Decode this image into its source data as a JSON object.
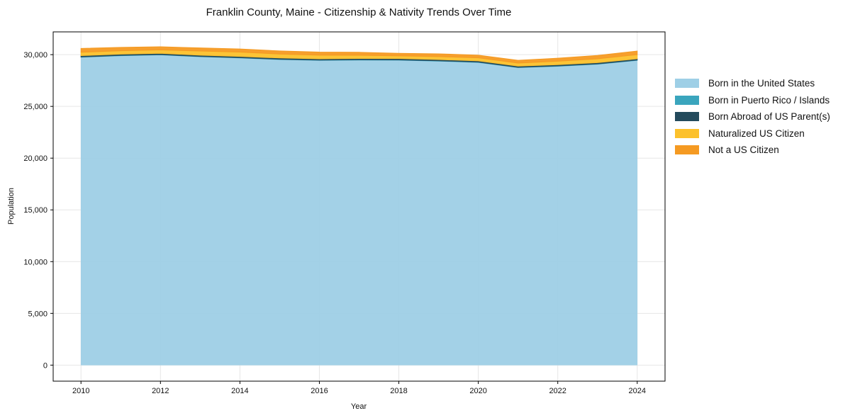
{
  "chart_data": {
    "type": "area",
    "stacked": true,
    "title": "Franklin County, Maine - Citizenship & Nativity Trends Over Time",
    "xlabel": "Year",
    "ylabel": "Population",
    "x": [
      2010,
      2011,
      2012,
      2013,
      2014,
      2015,
      2016,
      2017,
      2018,
      2019,
      2020,
      2021,
      2022,
      2023,
      2024
    ],
    "xticks": [
      2010,
      2012,
      2014,
      2016,
      2018,
      2020,
      2022,
      2024
    ],
    "yticks": [
      0,
      5000,
      10000,
      15000,
      20000,
      25000,
      30000
    ],
    "ytick_labels": [
      "0",
      "5,000",
      "10,000",
      "15,000",
      "20,000",
      "25,000",
      "30,000"
    ],
    "xlim": [
      2009.3,
      2024.7
    ],
    "ylim": [
      -1550,
      32200
    ],
    "grid": true,
    "legend_position": "right, outside plot",
    "series": [
      {
        "name": "Born in the United States",
        "color": "#9ecfe6",
        "values": [
          29750,
          29900,
          29980,
          29800,
          29680,
          29530,
          29450,
          29480,
          29470,
          29380,
          29250,
          28750,
          28880,
          29080,
          29450
        ]
      },
      {
        "name": "Born in Puerto Rico / Islands",
        "color": "#3aa5bd",
        "values": [
          30,
          30,
          30,
          30,
          30,
          30,
          30,
          30,
          30,
          30,
          30,
          30,
          30,
          30,
          30
        ]
      },
      {
        "name": "Born Abroad of US Parent(s)",
        "color": "#234a5c",
        "values": [
          130,
          120,
          120,
          120,
          120,
          120,
          120,
          120,
          120,
          120,
          120,
          120,
          120,
          120,
          120
        ]
      },
      {
        "name": "Naturalized US Citizen",
        "color": "#fcc12c",
        "values": [
          320,
          330,
          330,
          400,
          420,
          380,
          350,
          310,
          260,
          280,
          290,
          290,
          340,
          370,
          400
        ]
      },
      {
        "name": "Not a US Citizen",
        "color": "#f59a22",
        "values": [
          370,
          320,
          300,
          300,
          300,
          300,
          300,
          290,
          250,
          270,
          260,
          260,
          290,
          320,
          350
        ]
      }
    ]
  }
}
